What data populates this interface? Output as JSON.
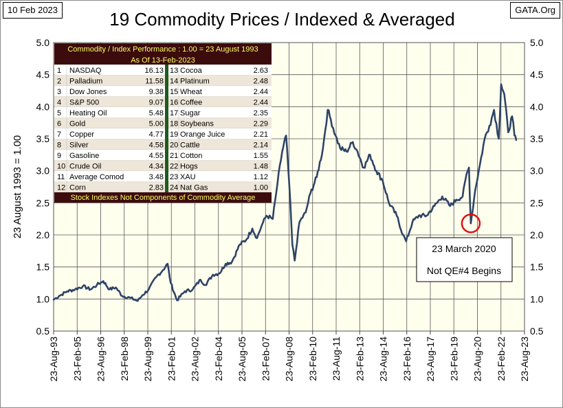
{
  "header": {
    "date_label": "10 Feb 2023",
    "source_label": "GATA.Org",
    "title": "19 Commodity Prices / Indexed & Averaged"
  },
  "colors": {
    "plot_bg": "#ffffee",
    "line": "#2e4466",
    "table_header_bg": "#3c0c0c",
    "table_header_text": "#ffff66",
    "table_row_alt": "#ede6d9",
    "table_divider": "#1f5a1f",
    "annotation_circle": "#dd1111"
  },
  "chart_data": {
    "type": "line",
    "title": "19 Commodity Prices / Indexed & Averaged",
    "ylabel": "23 August 1993 = 1.00",
    "xlabel": "",
    "ylim": [
      0.5,
      5.0
    ],
    "yticks": [
      "0.5",
      "1.0",
      "1.5",
      "2.0",
      "2.5",
      "3.0",
      "3.5",
      "4.0",
      "4.5",
      "5.0"
    ],
    "xticks": [
      "23-Aug-93",
      "23-Feb-95",
      "23-Aug-96",
      "23-Feb-98",
      "23-Aug-99",
      "23-Feb-01",
      "23-Aug-02",
      "23-Feb-04",
      "23-Aug-05",
      "23-Feb-07",
      "23-Aug-08",
      "23-Feb-10",
      "23-Aug-11",
      "23-Feb-13",
      "23-Aug-14",
      "23-Feb-16",
      "23-Aug-17",
      "23-Feb-19",
      "23-Aug-20",
      "23-Feb-22",
      "23-Aug-23"
    ],
    "grid": true,
    "series": [
      {
        "name": "Average Comod",
        "x": [
          1993.64,
          1994.0,
          1994.5,
          1995.0,
          1995.5,
          1996.0,
          1996.4,
          1996.8,
          1997.2,
          1997.6,
          1998.0,
          1998.5,
          1999.0,
          1999.3,
          1999.7,
          2000.2,
          2000.6,
          2000.9,
          2001.1,
          2001.5,
          2002.0,
          2002.5,
          2003.0,
          2003.3,
          2003.8,
          2004.2,
          2004.6,
          2005.0,
          2005.5,
          2005.9,
          2006.3,
          2006.6,
          2006.9,
          2007.2,
          2007.6,
          2007.9,
          2008.2,
          2008.45,
          2008.65,
          2008.85,
          2009.0,
          2009.3,
          2009.7,
          2010.0,
          2010.4,
          2010.8,
          2011.1,
          2011.3,
          2011.6,
          2011.9,
          2012.3,
          2012.7,
          2013.0,
          2013.4,
          2013.8,
          2014.2,
          2014.6,
          2015.0,
          2015.5,
          2015.9,
          2016.1,
          2016.5,
          2016.9,
          2017.4,
          2017.9,
          2018.4,
          2018.9,
          2019.3,
          2019.7,
          2019.95,
          2020.1,
          2020.22,
          2020.5,
          2020.8,
          2021.1,
          2021.4,
          2021.7,
          2022.0,
          2022.15,
          2022.35,
          2022.6,
          2022.85,
          2023.0,
          2023.11
        ],
        "y": [
          0.99,
          1.05,
          1.12,
          1.15,
          1.2,
          1.15,
          1.22,
          1.28,
          1.15,
          1.18,
          1.05,
          1.02,
          0.97,
          1.06,
          1.15,
          1.35,
          1.45,
          1.55,
          1.25,
          0.98,
          1.12,
          1.15,
          1.3,
          1.22,
          1.38,
          1.4,
          1.55,
          1.58,
          1.85,
          1.92,
          2.1,
          1.95,
          2.15,
          2.3,
          2.25,
          2.8,
          3.3,
          3.55,
          2.8,
          1.85,
          1.6,
          2.2,
          2.35,
          2.65,
          2.9,
          3.35,
          3.95,
          3.8,
          3.55,
          3.35,
          3.3,
          3.45,
          3.3,
          3.05,
          3.25,
          3.0,
          2.85,
          2.5,
          2.3,
          2.0,
          1.9,
          2.2,
          2.3,
          2.3,
          2.45,
          2.6,
          2.45,
          2.55,
          2.6,
          2.95,
          3.05,
          2.18,
          2.7,
          3.1,
          3.5,
          3.7,
          3.95,
          3.5,
          4.35,
          4.2,
          3.6,
          3.85,
          3.55,
          3.48
        ]
      }
    ],
    "annotations": [
      {
        "lines": [
          "23 March 2020",
          "Not QE#4 Begins"
        ],
        "x": 2020.22,
        "y": 2.18
      }
    ],
    "table": {
      "header1": "Commodity / Index Performance : 1.00 = 23 August 1993",
      "header2": "As Of    13-Feb-2023",
      "footer": "Stock Indexes Not Components of Commodity Average",
      "left": [
        {
          "rank": "1",
          "name": "NASDAQ",
          "value": "16.13"
        },
        {
          "rank": "2",
          "name": "Palladium",
          "value": "11.58"
        },
        {
          "rank": "3",
          "name": "Dow Jones",
          "value": "9.38"
        },
        {
          "rank": "4",
          "name": "S&P 500",
          "value": "9.07"
        },
        {
          "rank": "5",
          "name": "Heating Oil",
          "value": "5.48"
        },
        {
          "rank": "6",
          "name": "Gold",
          "value": "5.00"
        },
        {
          "rank": "7",
          "name": "Copper",
          "value": "4.77"
        },
        {
          "rank": "8",
          "name": "Silver",
          "value": "4.58"
        },
        {
          "rank": "9",
          "name": "Gasoline",
          "value": "4.55"
        },
        {
          "rank": "10",
          "name": "Crude Oil",
          "value": "4.34"
        },
        {
          "rank": "11",
          "name": "Average Comod",
          "value": "3.48"
        },
        {
          "rank": "12",
          "name": "Corn",
          "value": "2.83"
        }
      ],
      "right": [
        {
          "rank": "13",
          "name": "Cocoa",
          "value": "2.63"
        },
        {
          "rank": "14",
          "name": "Platinum",
          "value": "2.48"
        },
        {
          "rank": "15",
          "name": "Wheat",
          "value": "2.44"
        },
        {
          "rank": "16",
          "name": "Coffee",
          "value": "2.44"
        },
        {
          "rank": "17",
          "name": "Sugar",
          "value": "2.35"
        },
        {
          "rank": "18",
          "name": "Soybeans",
          "value": "2.29"
        },
        {
          "rank": "19",
          "name": "Orange Juice",
          "value": "2.21"
        },
        {
          "rank": "20",
          "name": "Cattle",
          "value": "2.14"
        },
        {
          "rank": "21",
          "name": "Cotton",
          "value": "1.55"
        },
        {
          "rank": "22",
          "name": "Hogs",
          "value": "1.48"
        },
        {
          "rank": "23",
          "name": "XAU",
          "value": "1.12"
        },
        {
          "rank": "24",
          "name": "Nat Gas",
          "value": "1.00"
        }
      ]
    }
  }
}
